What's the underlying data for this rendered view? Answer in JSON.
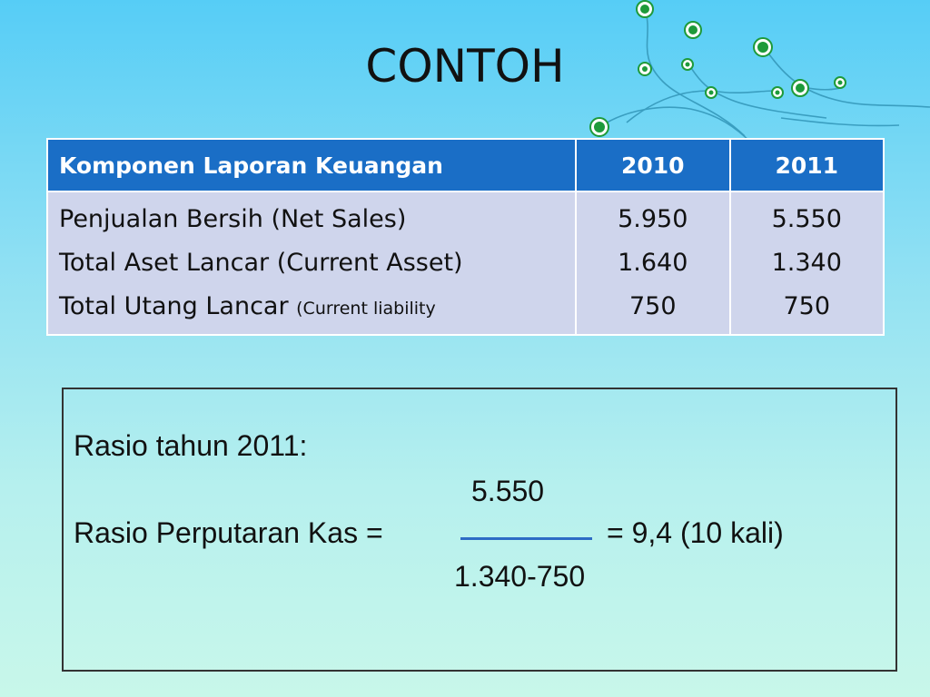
{
  "slide": {
    "title": "CONTOH"
  },
  "table": {
    "headers": [
      "Komponen Laporan Keuangan",
      "2010",
      "2011"
    ],
    "rows": [
      {
        "label": "Penjualan Bersih (Net Sales)",
        "y2010": "5.950",
        "y2011": "5.550"
      },
      {
        "label": "Total  Aset Lancar (Current Asset)",
        "y2010": "1.640",
        "y2011": "1.340"
      },
      {
        "label_main": "Total Utang Lancar ",
        "label_note": "(Current liability",
        "y2010": "750",
        "y2011": "750"
      }
    ]
  },
  "calc": {
    "heading": "Rasio tahun 2011:",
    "numerator": "5.550",
    "lhs": "Rasio Perputaran Kas =",
    "rhs": "= 9,4 (10 kali)",
    "denominator": "1.340-750"
  },
  "colors": {
    "header_bg": "#1a6ec6",
    "cell_bg": "#cfd5ec",
    "fraction_line": "#2d6bc4",
    "decor_green": "#1e9a3a"
  },
  "decor": {
    "icon": "vine-swirl-decoration-icon"
  }
}
